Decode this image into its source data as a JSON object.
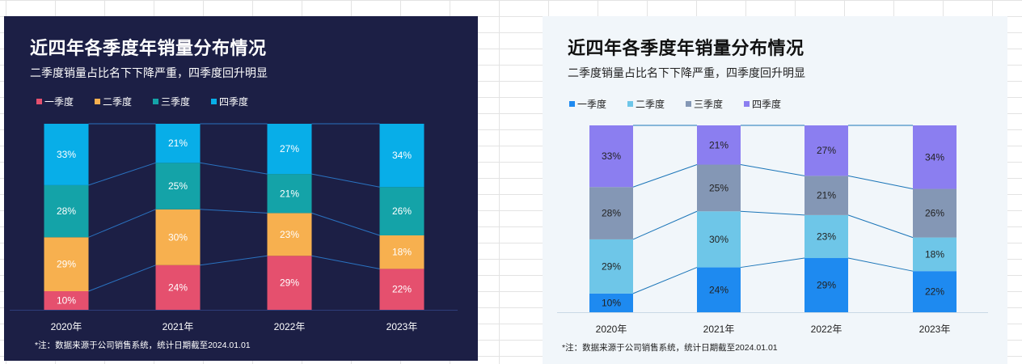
{
  "chart_data": [
    {
      "type": "bar",
      "stacked": true,
      "theme": "dark",
      "title": "近四年各季度年销量分布情况",
      "subtitle": "二季度销量占比名下下降严重，四季度回升明显",
      "categories": [
        "2020年",
        "2021年",
        "2022年",
        "2023年"
      ],
      "series": [
        {
          "name": "一季度",
          "color": "#e5506e",
          "values": [
            10,
            24,
            29,
            22
          ]
        },
        {
          "name": "二季度",
          "color": "#f7b04f",
          "values": [
            29,
            30,
            23,
            18
          ]
        },
        {
          "name": "三季度",
          "color": "#14a3a8",
          "values": [
            28,
            25,
            21,
            26
          ]
        },
        {
          "name": "四季度",
          "color": "#08aee8",
          "values": [
            33,
            21,
            27,
            34
          ]
        }
      ],
      "ylim": [
        0,
        100
      ],
      "unit": "%",
      "note": "*注：数据来源于公司销售系统，统计日期截至2024.01.01",
      "label_color": "#ffffff",
      "line_color": "#2a72c0",
      "axis_color": "#2e3d7a"
    },
    {
      "type": "bar",
      "stacked": true,
      "theme": "light",
      "title": "近四年各季度年销量分布情况",
      "subtitle": "二季度销量占比名下下降严重，四季度回升明显",
      "categories": [
        "2020年",
        "2021年",
        "2022年",
        "2023年"
      ],
      "series": [
        {
          "name": "一季度",
          "color": "#1e8af0",
          "values": [
            10,
            24,
            29,
            22
          ]
        },
        {
          "name": "二季度",
          "color": "#6ec6e8",
          "values": [
            29,
            30,
            23,
            18
          ]
        },
        {
          "name": "三季度",
          "color": "#8497b5",
          "values": [
            28,
            25,
            21,
            26
          ]
        },
        {
          "name": "四季度",
          "color": "#8b7ef0",
          "values": [
            33,
            21,
            27,
            34
          ]
        }
      ],
      "ylim": [
        0,
        100
      ],
      "unit": "%",
      "note": "*注：数据来源于公司销售系统，统计日期截至2024.01.01",
      "label_color": "#222222",
      "line_color": "#1b75b8",
      "axis_color": "#c9d8e6"
    }
  ]
}
